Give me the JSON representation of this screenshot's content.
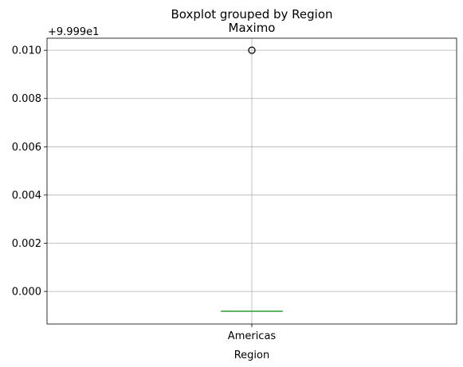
{
  "chart_data": {
    "type": "box",
    "suptitle": "Boxplot grouped by Region",
    "title": "Maximo",
    "xlabel": "Region",
    "ylabel": "",
    "offset_label": "+9.999e1",
    "categories": [
      "Americas"
    ],
    "boxes": [
      {
        "category": "Americas",
        "min": -0.00082,
        "q1": -0.00082,
        "median": -0.00082,
        "q3": -0.00082,
        "max": -0.00082,
        "outliers": [
          0.01
        ]
      }
    ],
    "ylim": [
      -0.00135,
      0.0105
    ],
    "yticks": [
      0.0,
      0.002,
      0.004,
      0.006,
      0.008,
      0.01
    ],
    "ytick_labels": [
      "0.000",
      "0.002",
      "0.004",
      "0.006",
      "0.008",
      "0.010"
    ],
    "grid": true,
    "colors": {
      "box": "#1f77b4",
      "whisker": "#000000",
      "median": "#2ca02c",
      "flier": "#000000",
      "grid": "#b0b0b0"
    }
  }
}
